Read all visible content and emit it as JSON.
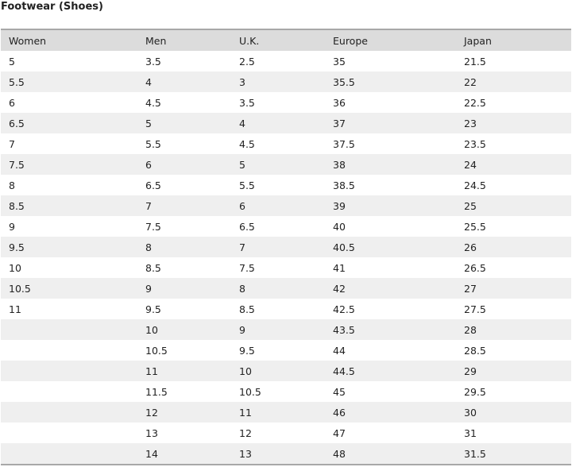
{
  "page": {
    "title": "Footwear (Shoes)"
  },
  "table": {
    "headers": [
      "Women",
      "Men",
      "U.K.",
      "Europe",
      "Japan"
    ],
    "rows": [
      [
        "5",
        "3.5",
        "2.5",
        "35",
        "21.5"
      ],
      [
        "5.5",
        "4",
        "3",
        "35.5",
        "22"
      ],
      [
        "6",
        "4.5",
        "3.5",
        "36",
        "22.5"
      ],
      [
        "6.5",
        "5",
        "4",
        "37",
        "23"
      ],
      [
        "7",
        "5.5",
        "4.5",
        "37.5",
        "23.5"
      ],
      [
        "7.5",
        "6",
        "5",
        "38",
        "24"
      ],
      [
        "8",
        "6.5",
        "5.5",
        "38.5",
        "24.5"
      ],
      [
        "8.5",
        "7",
        "6",
        "39",
        "25"
      ],
      [
        "9",
        "7.5",
        "6.5",
        "40",
        "25.5"
      ],
      [
        "9.5",
        "8",
        "7",
        "40.5",
        "26"
      ],
      [
        "10",
        "8.5",
        "7.5",
        "41",
        "26.5"
      ],
      [
        "10.5",
        "9",
        "8",
        "42",
        "27"
      ],
      [
        "11",
        "9.5",
        "8.5",
        "42.5",
        "27.5"
      ],
      [
        "",
        "10",
        "9",
        "43.5",
        "28"
      ],
      [
        "",
        "10.5",
        "9.5",
        "44",
        "28.5"
      ],
      [
        "",
        "11",
        "10",
        "44.5",
        "29"
      ],
      [
        "",
        "11.5",
        "10.5",
        "45",
        "29.5"
      ],
      [
        "",
        "12",
        "11",
        "46",
        "30"
      ],
      [
        "",
        "13",
        "12",
        "47",
        "31"
      ],
      [
        "",
        "14",
        "13",
        "48",
        "31.5"
      ]
    ]
  }
}
